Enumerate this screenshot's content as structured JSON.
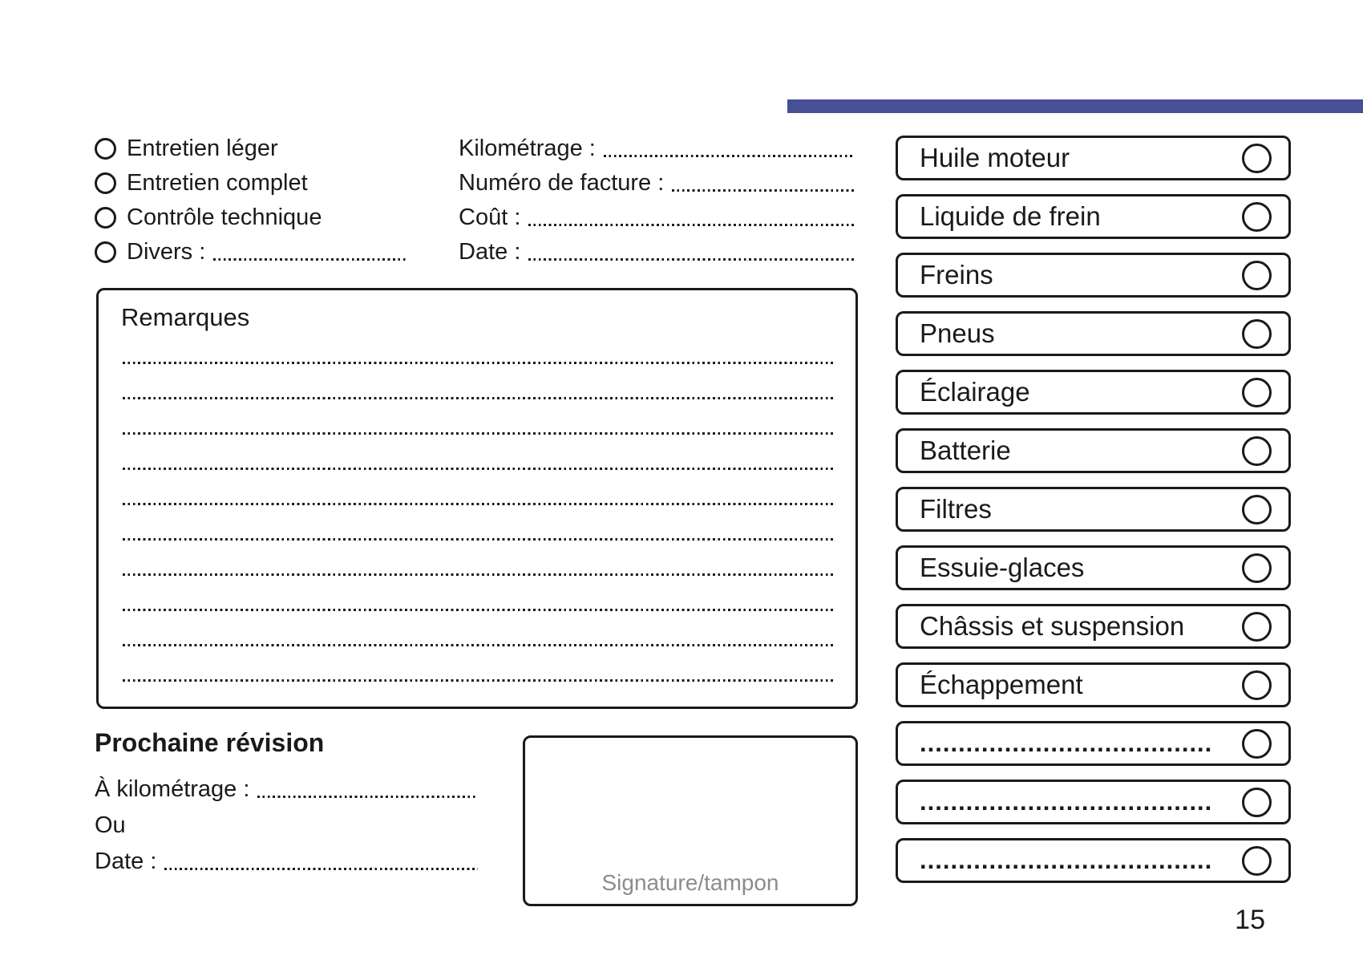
{
  "page": {
    "number": "15",
    "accent_color": "#474f96"
  },
  "service_type": {
    "options": [
      {
        "label": "Entretien léger"
      },
      {
        "label": "Entretien complet"
      },
      {
        "label": "Contrôle technique"
      },
      {
        "label": "Divers :",
        "has_leader": true
      }
    ]
  },
  "invoice_fields": [
    {
      "label": "Kilométrage :",
      "has_leader": true
    },
    {
      "label": "Numéro de facture :",
      "has_leader": true
    },
    {
      "label": "Coût :",
      "has_leader": true
    },
    {
      "label": "Date :",
      "has_leader": true
    }
  ],
  "remarks": {
    "title": "Remarques",
    "lines": 10
  },
  "next_service": {
    "title": "Prochaine révision",
    "fields": [
      {
        "label": "À kilométrage :",
        "has_leader": true
      },
      {
        "label": "Ou"
      },
      {
        "label": "Date :",
        "has_leader": true
      }
    ]
  },
  "signature": {
    "label": "Signature/tampon"
  },
  "checklist": {
    "items": [
      {
        "label": "Huile moteur"
      },
      {
        "label": "Liquide de frein"
      },
      {
        "label": "Freins"
      },
      {
        "label": "Pneus"
      },
      {
        "label": "Éclairage"
      },
      {
        "label": "Batterie"
      },
      {
        "label": "Filtres"
      },
      {
        "label": "Essuie-glaces"
      },
      {
        "label": "Châssis et suspension"
      },
      {
        "label": "Échappement"
      },
      {
        "label": "......................................",
        "dots": true
      },
      {
        "label": "......................................",
        "dots": true
      },
      {
        "label": "......................................",
        "dots": true
      }
    ]
  }
}
